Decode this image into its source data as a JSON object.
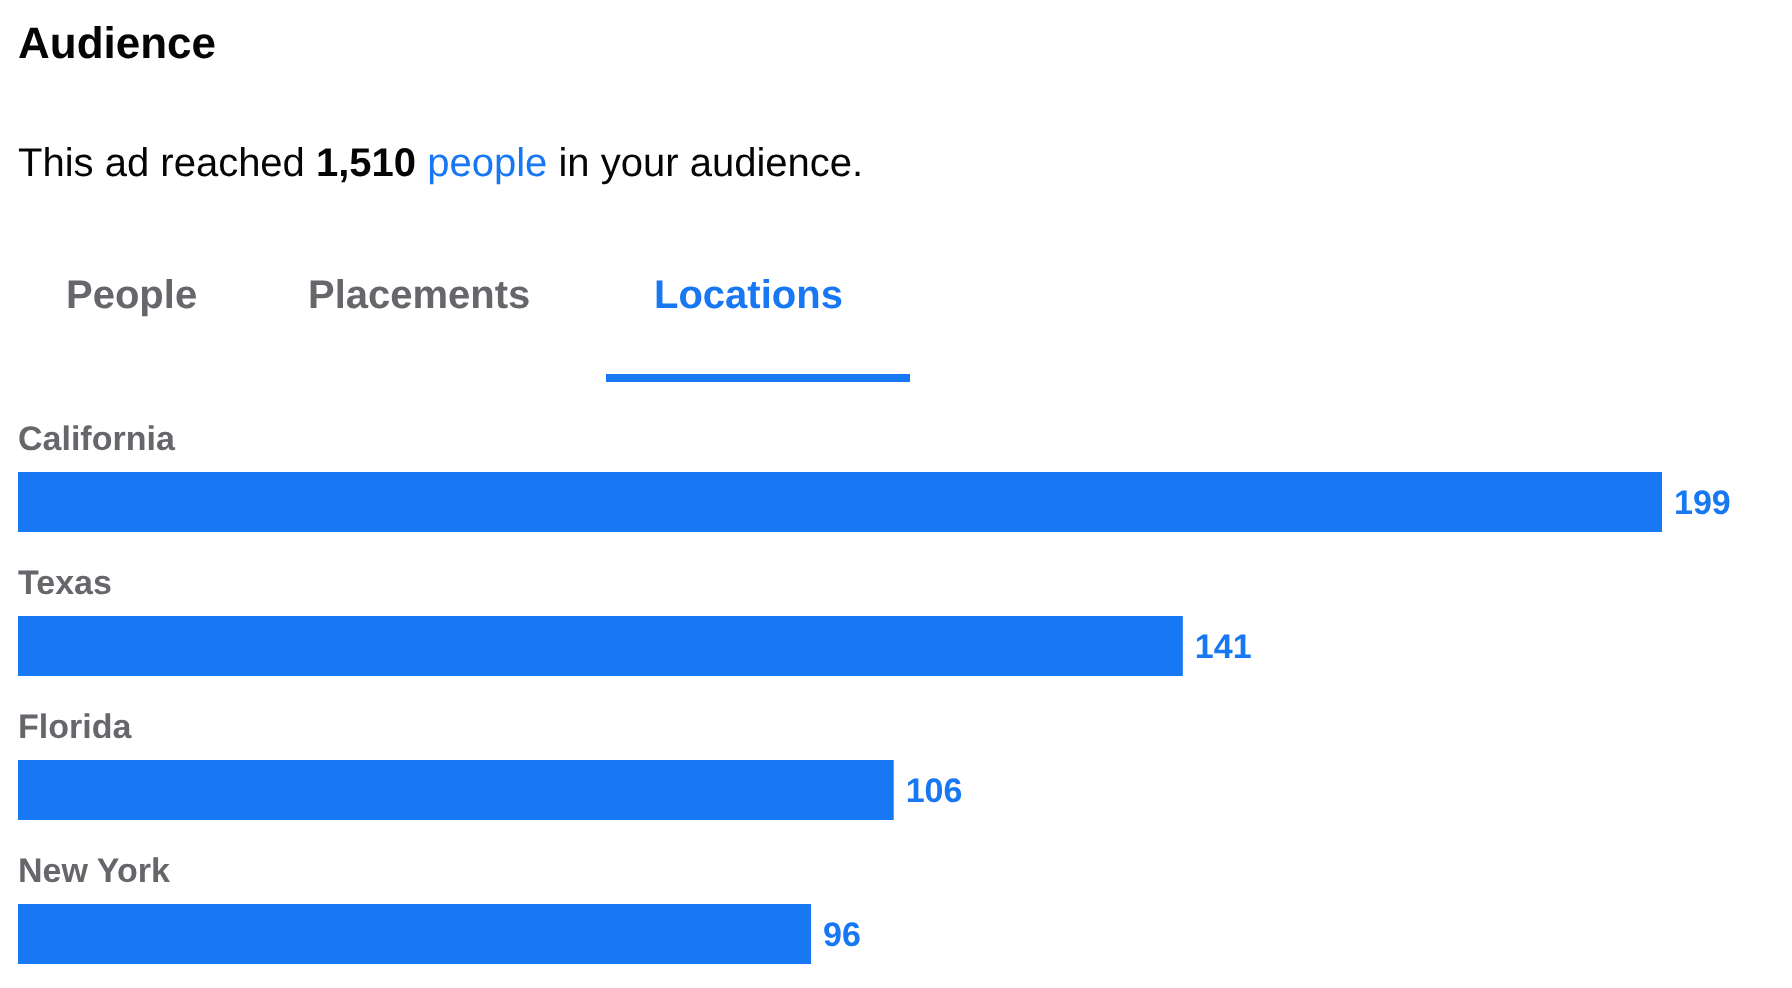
{
  "chart_data": {
    "type": "bar",
    "orientation": "horizontal",
    "title": "Audience",
    "subtitle": "This ad reached 1,510 people in your audience.",
    "annotations": [
      "People",
      "Placements",
      "Locations"
    ],
    "categories": [
      "California",
      "Texas",
      "Florida",
      "New York"
    ],
    "values": [
      199,
      141,
      106,
      96
    ],
    "color": "#1877f2",
    "data_labels": true
  }
}
